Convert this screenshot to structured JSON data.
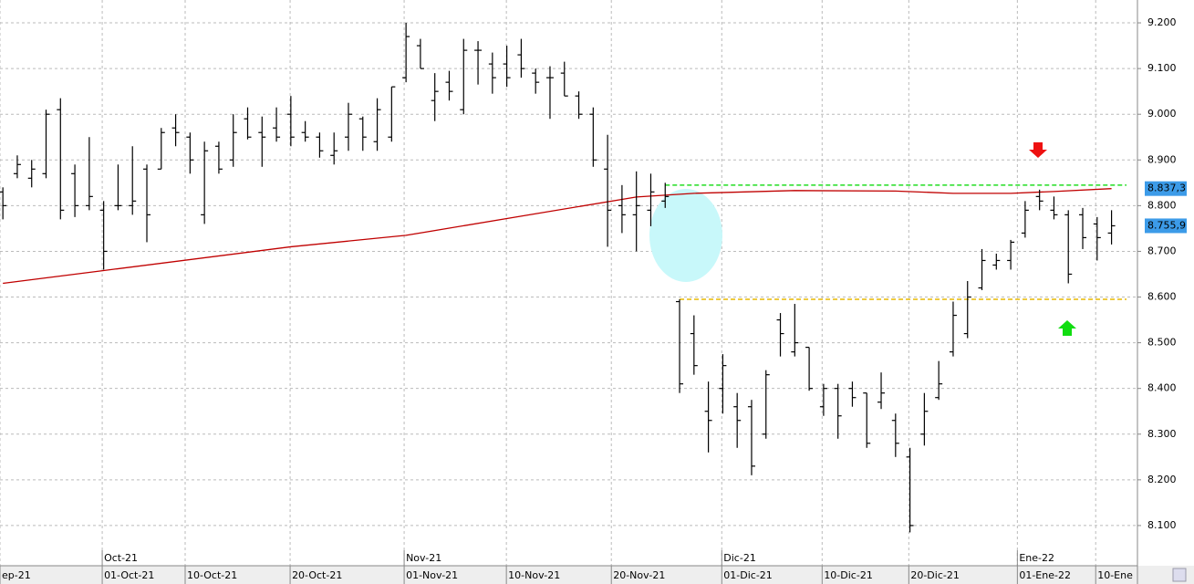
{
  "chart_data": {
    "type": "ohlc",
    "xlim": [
      -0.2,
      78.8
    ],
    "ylim": [
      8012,
      9250
    ],
    "yticks": [
      {
        "value": 8100,
        "label": "8.100"
      },
      {
        "value": 8200,
        "label": "8.200"
      },
      {
        "value": 8300,
        "label": "8.300"
      },
      {
        "value": 8400,
        "label": "8.400"
      },
      {
        "value": 8500,
        "label": "8.500"
      },
      {
        "value": 8600,
        "label": "8.600"
      },
      {
        "value": 8700,
        "label": "8.700"
      },
      {
        "value": 8800,
        "label": "8.800"
      },
      {
        "value": 8900,
        "label": "8.900"
      },
      {
        "value": 9000,
        "label": "9.000"
      },
      {
        "value": 9100,
        "label": "9.100"
      },
      {
        "value": 9200,
        "label": "9.200"
      }
    ],
    "xticks": [
      {
        "value": -0.2,
        "label": "ep-21"
      },
      {
        "value": 6.9,
        "label": "01-Oct-21"
      },
      {
        "value": 12.66,
        "label": "10-Oct-21"
      },
      {
        "value": 19.95,
        "label": "20-Oct-21"
      },
      {
        "value": 27.87,
        "label": "01-Nov-21"
      },
      {
        "value": 34.97,
        "label": "10-Nov-21"
      },
      {
        "value": 42.26,
        "label": "20-Nov-21"
      },
      {
        "value": 49.93,
        "label": "01-Dic-21"
      },
      {
        "value": 56.9,
        "label": "10-Dic-21"
      },
      {
        "value": 62.92,
        "label": "20-Dic-21"
      },
      {
        "value": 70.46,
        "label": "01-Ene-22"
      },
      {
        "value": 75.9,
        "label": "10-Ene"
      }
    ],
    "month_ticks": [
      {
        "value": 6.9,
        "label": "Oct-21"
      },
      {
        "value": 27.87,
        "label": "Nov-21"
      },
      {
        "value": 49.93,
        "label": "Dic-21"
      },
      {
        "value": 70.46,
        "label": "Ene-22"
      }
    ],
    "grid": true,
    "bar_color": "#000000",
    "ohlc": {
      "open": [
        8830,
        8870,
        8860,
        8870,
        9010,
        8870,
        8800,
        8790,
        8800,
        8800,
        8880,
        8880,
        8970,
        8950,
        8780,
        8930,
        8900,
        8990,
        8960,
        8970,
        9000,
        8960,
        8950,
        8910,
        8950,
        8990,
        8940,
        8950,
        9080,
        9150,
        9030,
        9070,
        9010,
        9140,
        9110,
        9110,
        9130,
        9090,
        9080,
        9090,
        9040,
        9000,
        8880,
        8800,
        8780,
        8790,
        8810,
        8590,
        8520,
        8350,
        8400,
        8360,
        8360,
        8300,
        8550,
        8480,
        8490,
        8360,
        8400,
        8400,
        8390,
        8370,
        8330,
        8250,
        8300,
        8380,
        8480,
        8520,
        8620,
        8670,
        8680,
        8740,
        8820,
        8790,
        8780,
        8780,
        8760,
        8740
      ],
      "high": [
        8840,
        8910,
        8900,
        9010,
        9035,
        8890,
        8950,
        8810,
        8890,
        8930,
        8890,
        8970,
        9000,
        8960,
        8940,
        8940,
        9000,
        9015,
        8995,
        9015,
        9040,
        8985,
        8960,
        8960,
        9025,
        8995,
        9035,
        9060,
        9200,
        9165,
        9090,
        9095,
        9165,
        9160,
        9135,
        9150,
        9165,
        9100,
        9105,
        9115,
        9050,
        9015,
        8955,
        8845,
        8875,
        8870,
        8850,
        8595,
        8560,
        8415,
        8475,
        8390,
        8375,
        8440,
        8565,
        8585,
        8490,
        8410,
        8410,
        8415,
        8390,
        8435,
        8345,
        8270,
        8390,
        8460,
        8590,
        8635,
        8705,
        8695,
        8725,
        8810,
        8835,
        8820,
        8790,
        8795,
        8775,
        8790
      ],
      "low": [
        8770,
        8860,
        8840,
        8860,
        8770,
        8775,
        8790,
        8660,
        8790,
        8780,
        8720,
        8880,
        8930,
        8870,
        8760,
        8870,
        8885,
        8945,
        8885,
        8940,
        8930,
        8940,
        8905,
        8890,
        8920,
        8920,
        8920,
        8940,
        9070,
        9100,
        8985,
        9030,
        9000,
        9065,
        9045,
        9060,
        9080,
        9045,
        8990,
        9040,
        8990,
        8885,
        8710,
        8740,
        8700,
        8755,
        8795,
        8390,
        8430,
        8260,
        8345,
        8270,
        8210,
        8290,
        8470,
        8470,
        8395,
        8340,
        8290,
        8360,
        8270,
        8355,
        8250,
        8085,
        8275,
        8375,
        8470,
        8510,
        8615,
        8660,
        8660,
        8730,
        8790,
        8770,
        8630,
        8705,
        8680,
        8715
      ],
      "close": [
        8800,
        8890,
        8880,
        9000,
        8790,
        8800,
        8820,
        8700,
        8800,
        8810,
        8780,
        8960,
        8960,
        8900,
        8920,
        8880,
        8960,
        8950,
        8950,
        8950,
        8950,
        8950,
        8920,
        8920,
        9000,
        8950,
        9010,
        9060,
        9170,
        9100,
        9050,
        9050,
        9140,
        9140,
        9080,
        9080,
        9100,
        9070,
        9080,
        9040,
        9000,
        8900,
        8790,
        8780,
        8800,
        8830,
        8820,
        8410,
        8450,
        8330,
        8450,
        8330,
        8230,
        8430,
        8520,
        8500,
        8400,
        8400,
        8340,
        8380,
        8280,
        8390,
        8280,
        8100,
        8350,
        8410,
        8560,
        8600,
        8680,
        8680,
        8720,
        8790,
        8810,
        8780,
        8650,
        8730,
        8730,
        8755.9
      ]
    },
    "moving_average": {
      "color": "#c00000",
      "x": [
        0,
        7,
        20,
        28,
        36,
        44,
        48,
        55,
        62,
        66,
        70,
        73,
        77
      ],
      "values": [
        8630,
        8658,
        8710,
        8735,
        8777,
        8819,
        8827,
        8833,
        8832,
        8827,
        8827,
        8831,
        8837.3
      ]
    },
    "levels": [
      {
        "value": 8845,
        "start": 46,
        "color": "#22dd22"
      },
      {
        "value": 8595,
        "start": 47,
        "color": "#e8b800"
      }
    ],
    "price_labels": [
      {
        "value": 8837.3,
        "label": "8.837,3",
        "color": "#3c9be8"
      },
      {
        "value": 8755.9,
        "label": "8.755,9",
        "color": "#3c9be8"
      }
    ]
  }
}
